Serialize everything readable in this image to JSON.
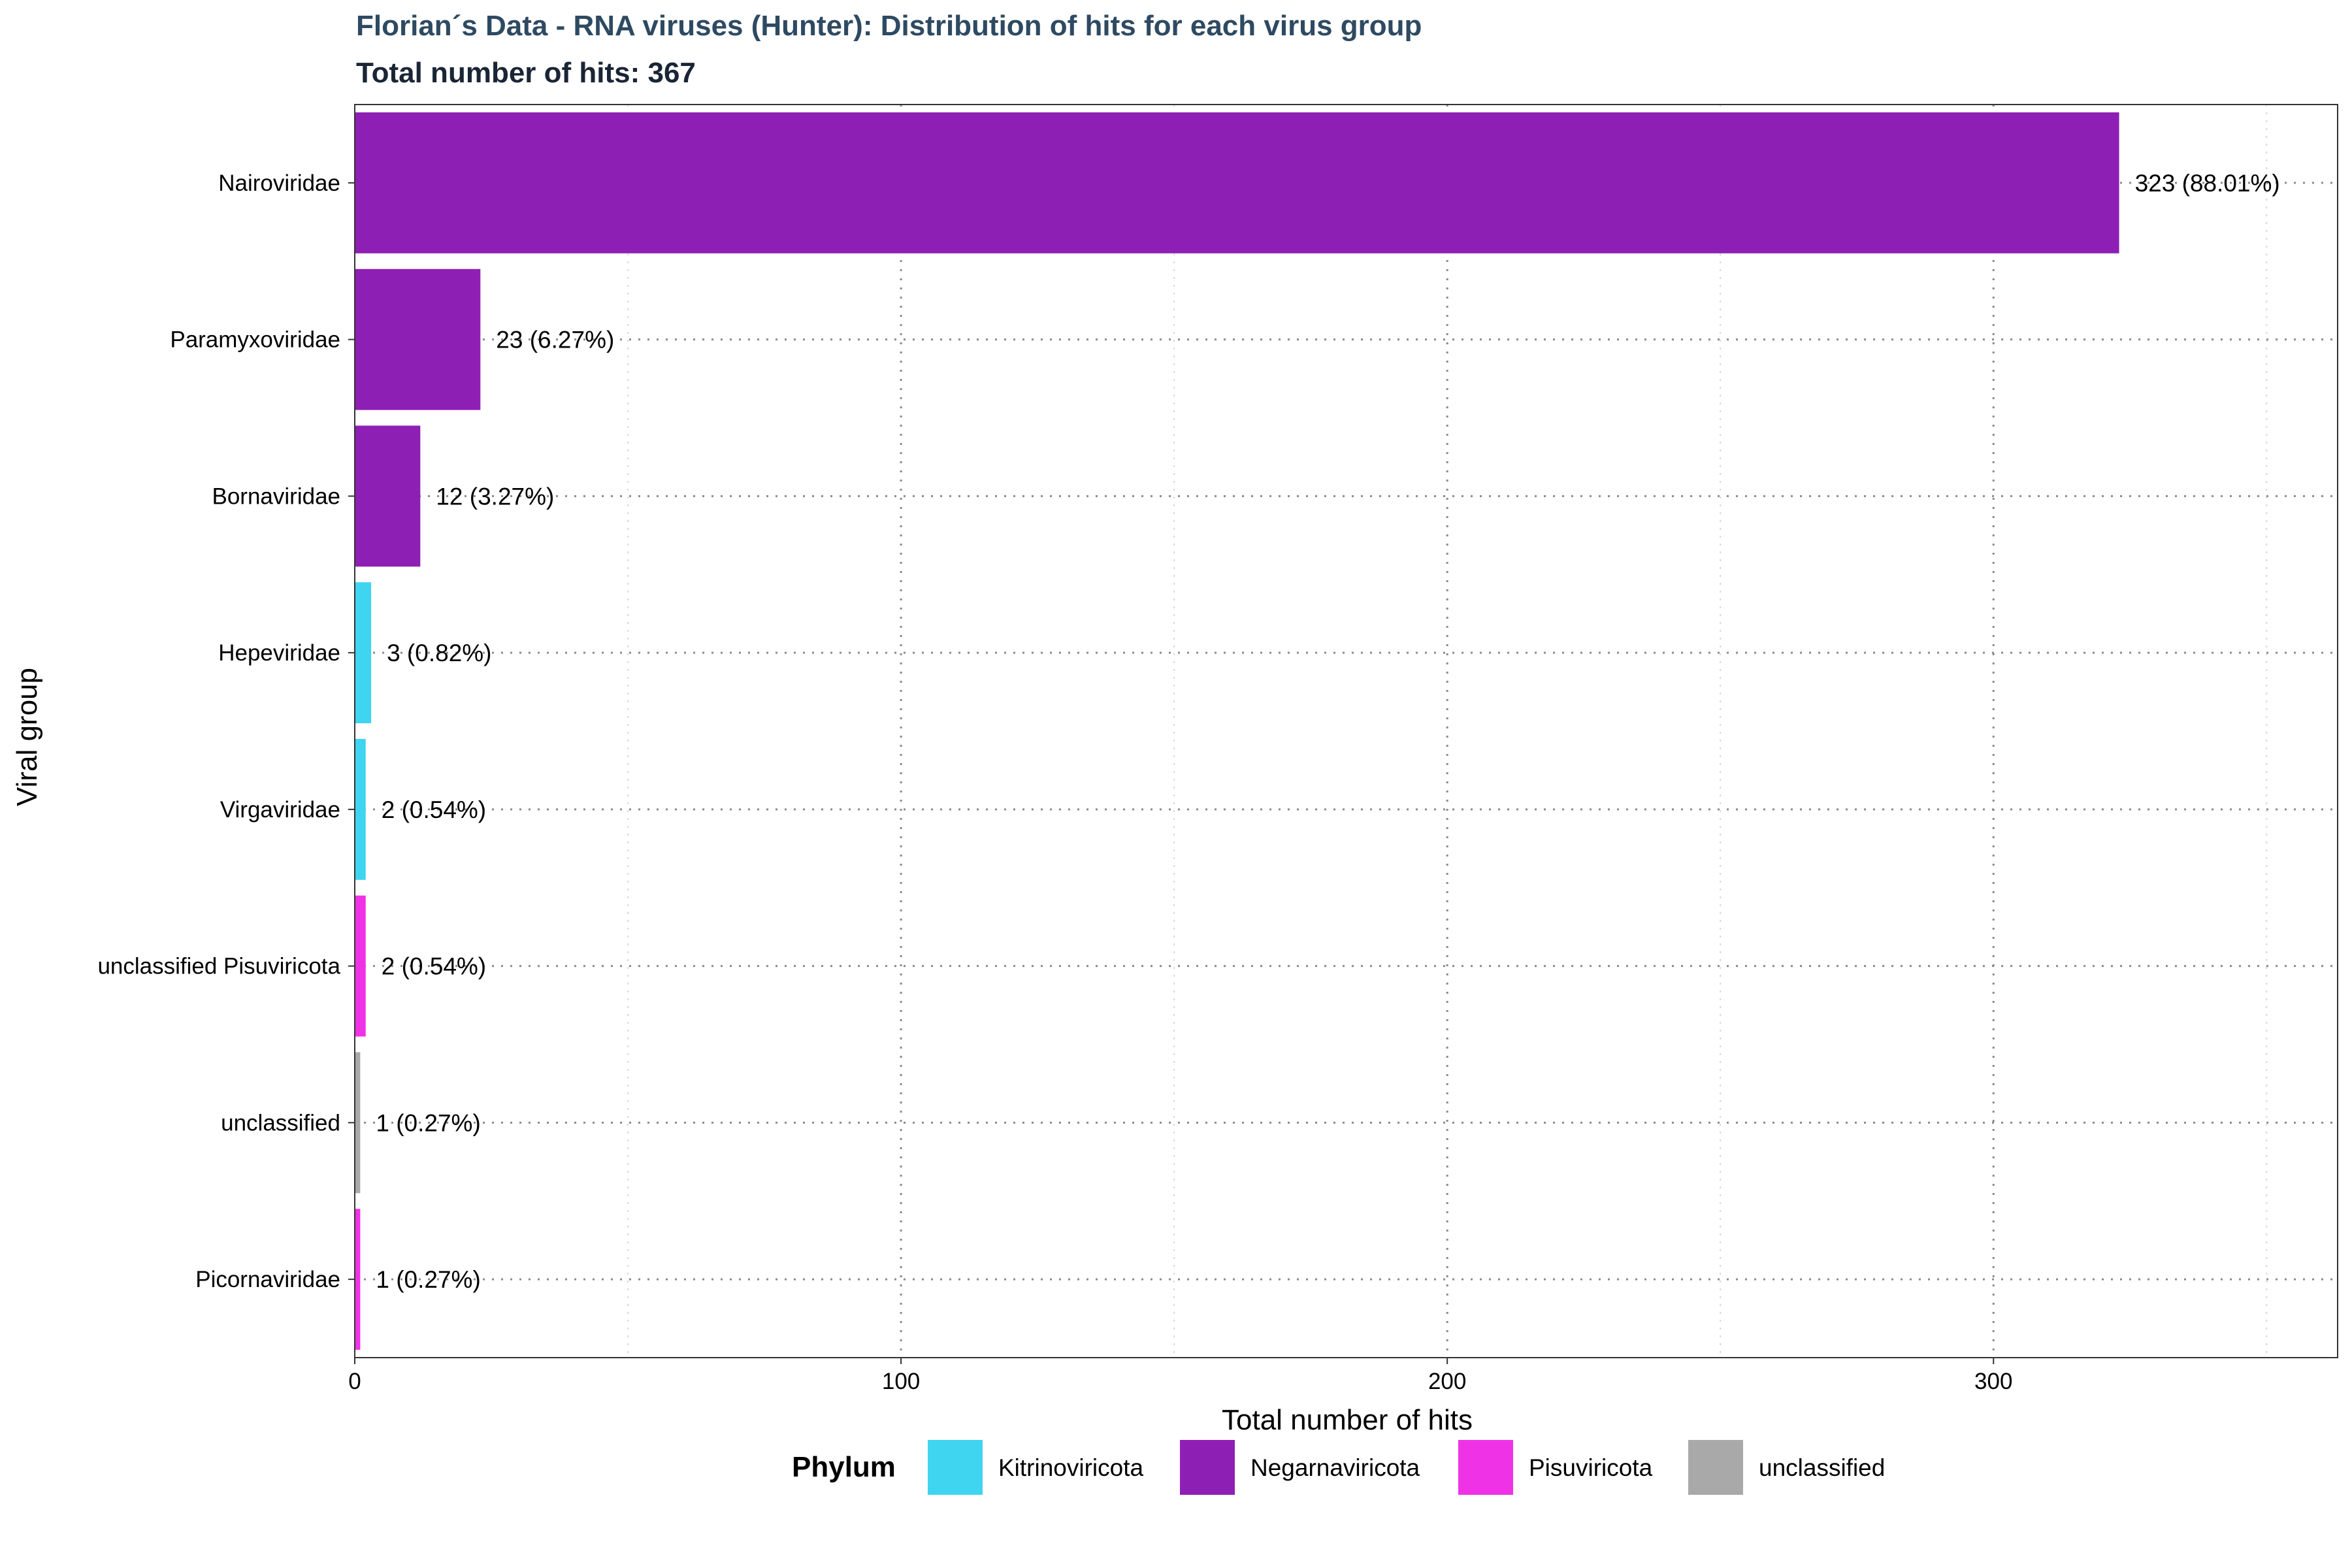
{
  "title": "Florian´s Data - RNA viruses (Hunter): Distribution of hits for each virus group",
  "subtitle": "Total number of hits: 367",
  "chart_data": {
    "type": "bar",
    "orientation": "horizontal",
    "title": "Florian´s Data - RNA viruses (Hunter): Distribution of hits for each virus group",
    "subtitle": "Total number of hits: 367",
    "xlabel": "Total number of hits",
    "ylabel": "Viral group",
    "xlim": [
      0,
      363
    ],
    "xticks": [
      0,
      100,
      200,
      300
    ],
    "grid": true,
    "categories": [
      "Nairoviridae",
      "Paramyxoviridae",
      "Bornaviridae",
      "Hepeviridae",
      "Virgaviridae",
      "unclassified Pisuviricota",
      "unclassified",
      "Picornaviridae"
    ],
    "values": [
      323,
      23,
      12,
      3,
      2,
      2,
      1,
      1
    ],
    "labels": [
      "323 (88.01%)",
      "23 (6.27%)",
      "12 (3.27%)",
      "3 (0.82%)",
      "2 (0.54%)",
      "2 (0.54%)",
      "1 (0.27%)",
      "1 (0.27%)"
    ],
    "phylum": [
      "Negarnaviricota",
      "Negarnaviricota",
      "Negarnaviricota",
      "Kitrinoviricota",
      "Kitrinoviricota",
      "Pisuviricota",
      "unclassified",
      "Pisuviricota"
    ],
    "legend": {
      "title": "Phylum",
      "placement": "bottom",
      "entries": [
        {
          "name": "Kitrinoviricota",
          "color": "#3fd4f0"
        },
        {
          "name": "Negarnaviricota",
          "color": "#8e1fb4"
        },
        {
          "name": "Pisuviricota",
          "color": "#f032e6"
        },
        {
          "name": "unclassified",
          "color": "#a9a9a9"
        }
      ]
    }
  }
}
